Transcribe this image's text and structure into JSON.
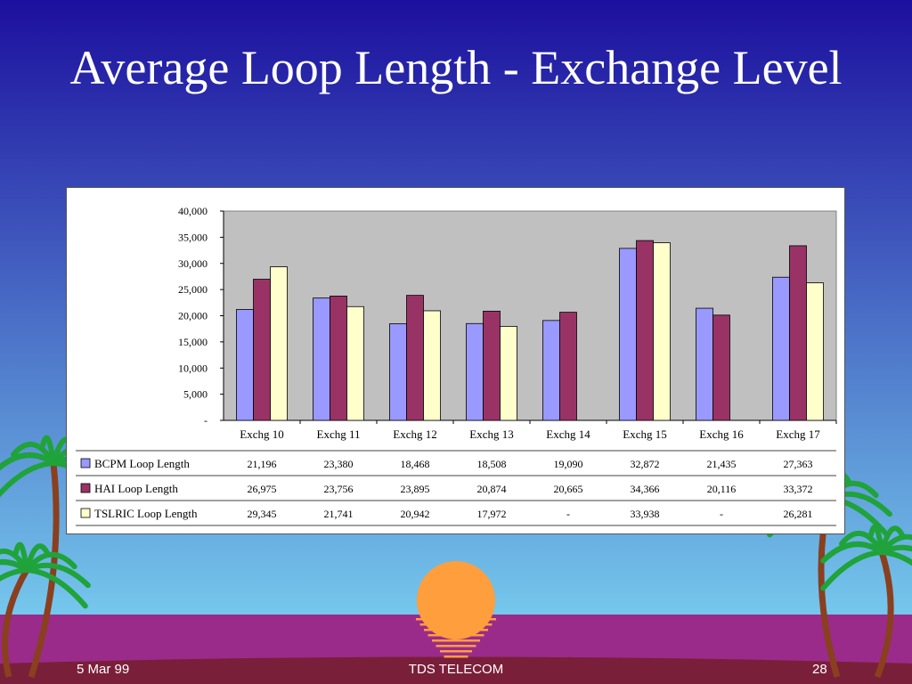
{
  "slide": {
    "title": "Average Loop Length - Exchange Level",
    "footer_date": "5 Mar 99",
    "footer_company": "TDS TELECOM",
    "page_number": "28"
  },
  "colors": {
    "bg_top": "#1c0f9e",
    "bg_bottom": "#7fdcf5",
    "sun": "#ff9e3d",
    "ground": "#9a2b8a",
    "palm_leaf": "#1fa33a",
    "palm_trunk": "#8a3f1f",
    "plot_bg": "#c0c0c0"
  },
  "chart_data": {
    "type": "bar",
    "categories": [
      "Exchg 10",
      "Exchg 11",
      "Exchg 12",
      "Exchg 13",
      "Exchg 14",
      "Exchg 15",
      "Exchg 16",
      "Exchg 17"
    ],
    "series": [
      {
        "name": "BCPM Loop Length",
        "color": "#9999ff",
        "values": [
          21196,
          23380,
          18468,
          18508,
          19090,
          32872,
          21435,
          27363
        ],
        "labels": [
          "21,196",
          "23,380",
          "18,468",
          "18,508",
          "19,090",
          "32,872",
          "21,435",
          "27,363"
        ]
      },
      {
        "name": "HAI Loop Length",
        "color": "#993366",
        "values": [
          26975,
          23756,
          23895,
          20874,
          20665,
          34366,
          20116,
          33372
        ],
        "labels": [
          "26,975",
          "23,756",
          "23,895",
          "20,874",
          "20,665",
          "34,366",
          "20,116",
          "33,372"
        ]
      },
      {
        "name": "TSLRIC Loop Length",
        "color": "#ffffcc",
        "values": [
          29345,
          21741,
          20942,
          17972,
          null,
          33938,
          null,
          26281
        ],
        "labels": [
          "29,345",
          "21,741",
          "20,942",
          "17,972",
          "-",
          "33,938",
          "-",
          "26,281"
        ]
      }
    ],
    "ylim": [
      0,
      40000
    ],
    "yticks": [
      0,
      5000,
      10000,
      15000,
      20000,
      25000,
      30000,
      35000,
      40000
    ],
    "ytick_labels": [
      "-",
      "5,000",
      "10,000",
      "15,000",
      "20,000",
      "25,000",
      "30,000",
      "35,000",
      "40,000"
    ],
    "grid": false,
    "legend": "data-table"
  }
}
